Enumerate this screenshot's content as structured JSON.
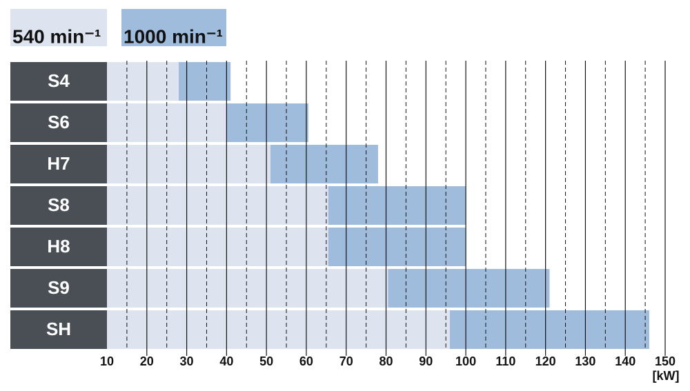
{
  "chart_data": {
    "type": "range-bar",
    "categories": [
      "S4",
      "S6",
      "H7",
      "S8",
      "H8",
      "S9",
      "SH"
    ],
    "series": [
      {
        "name": "540 min⁻¹",
        "color": "#dde4f0",
        "values": [
          28,
          40,
          51,
          65.5,
          65.5,
          80.5,
          96
        ]
      },
      {
        "name": "1000 min⁻¹",
        "color": "#a0bcdc",
        "start": [
          28,
          40,
          51,
          65.5,
          65.5,
          80.5,
          96
        ],
        "values": [
          41,
          60.5,
          78,
          100,
          100,
          121,
          146
        ]
      }
    ],
    "xlim": [
      10,
      150
    ],
    "xticks": [
      10,
      20,
      30,
      40,
      50,
      60,
      70,
      80,
      90,
      100,
      110,
      120,
      130,
      140,
      150
    ],
    "xminorticks": [
      15,
      25,
      35,
      45,
      55,
      65,
      75,
      85,
      95,
      105,
      115,
      125,
      135,
      145
    ],
    "xlabel": "[kW]",
    "grid": true
  }
}
